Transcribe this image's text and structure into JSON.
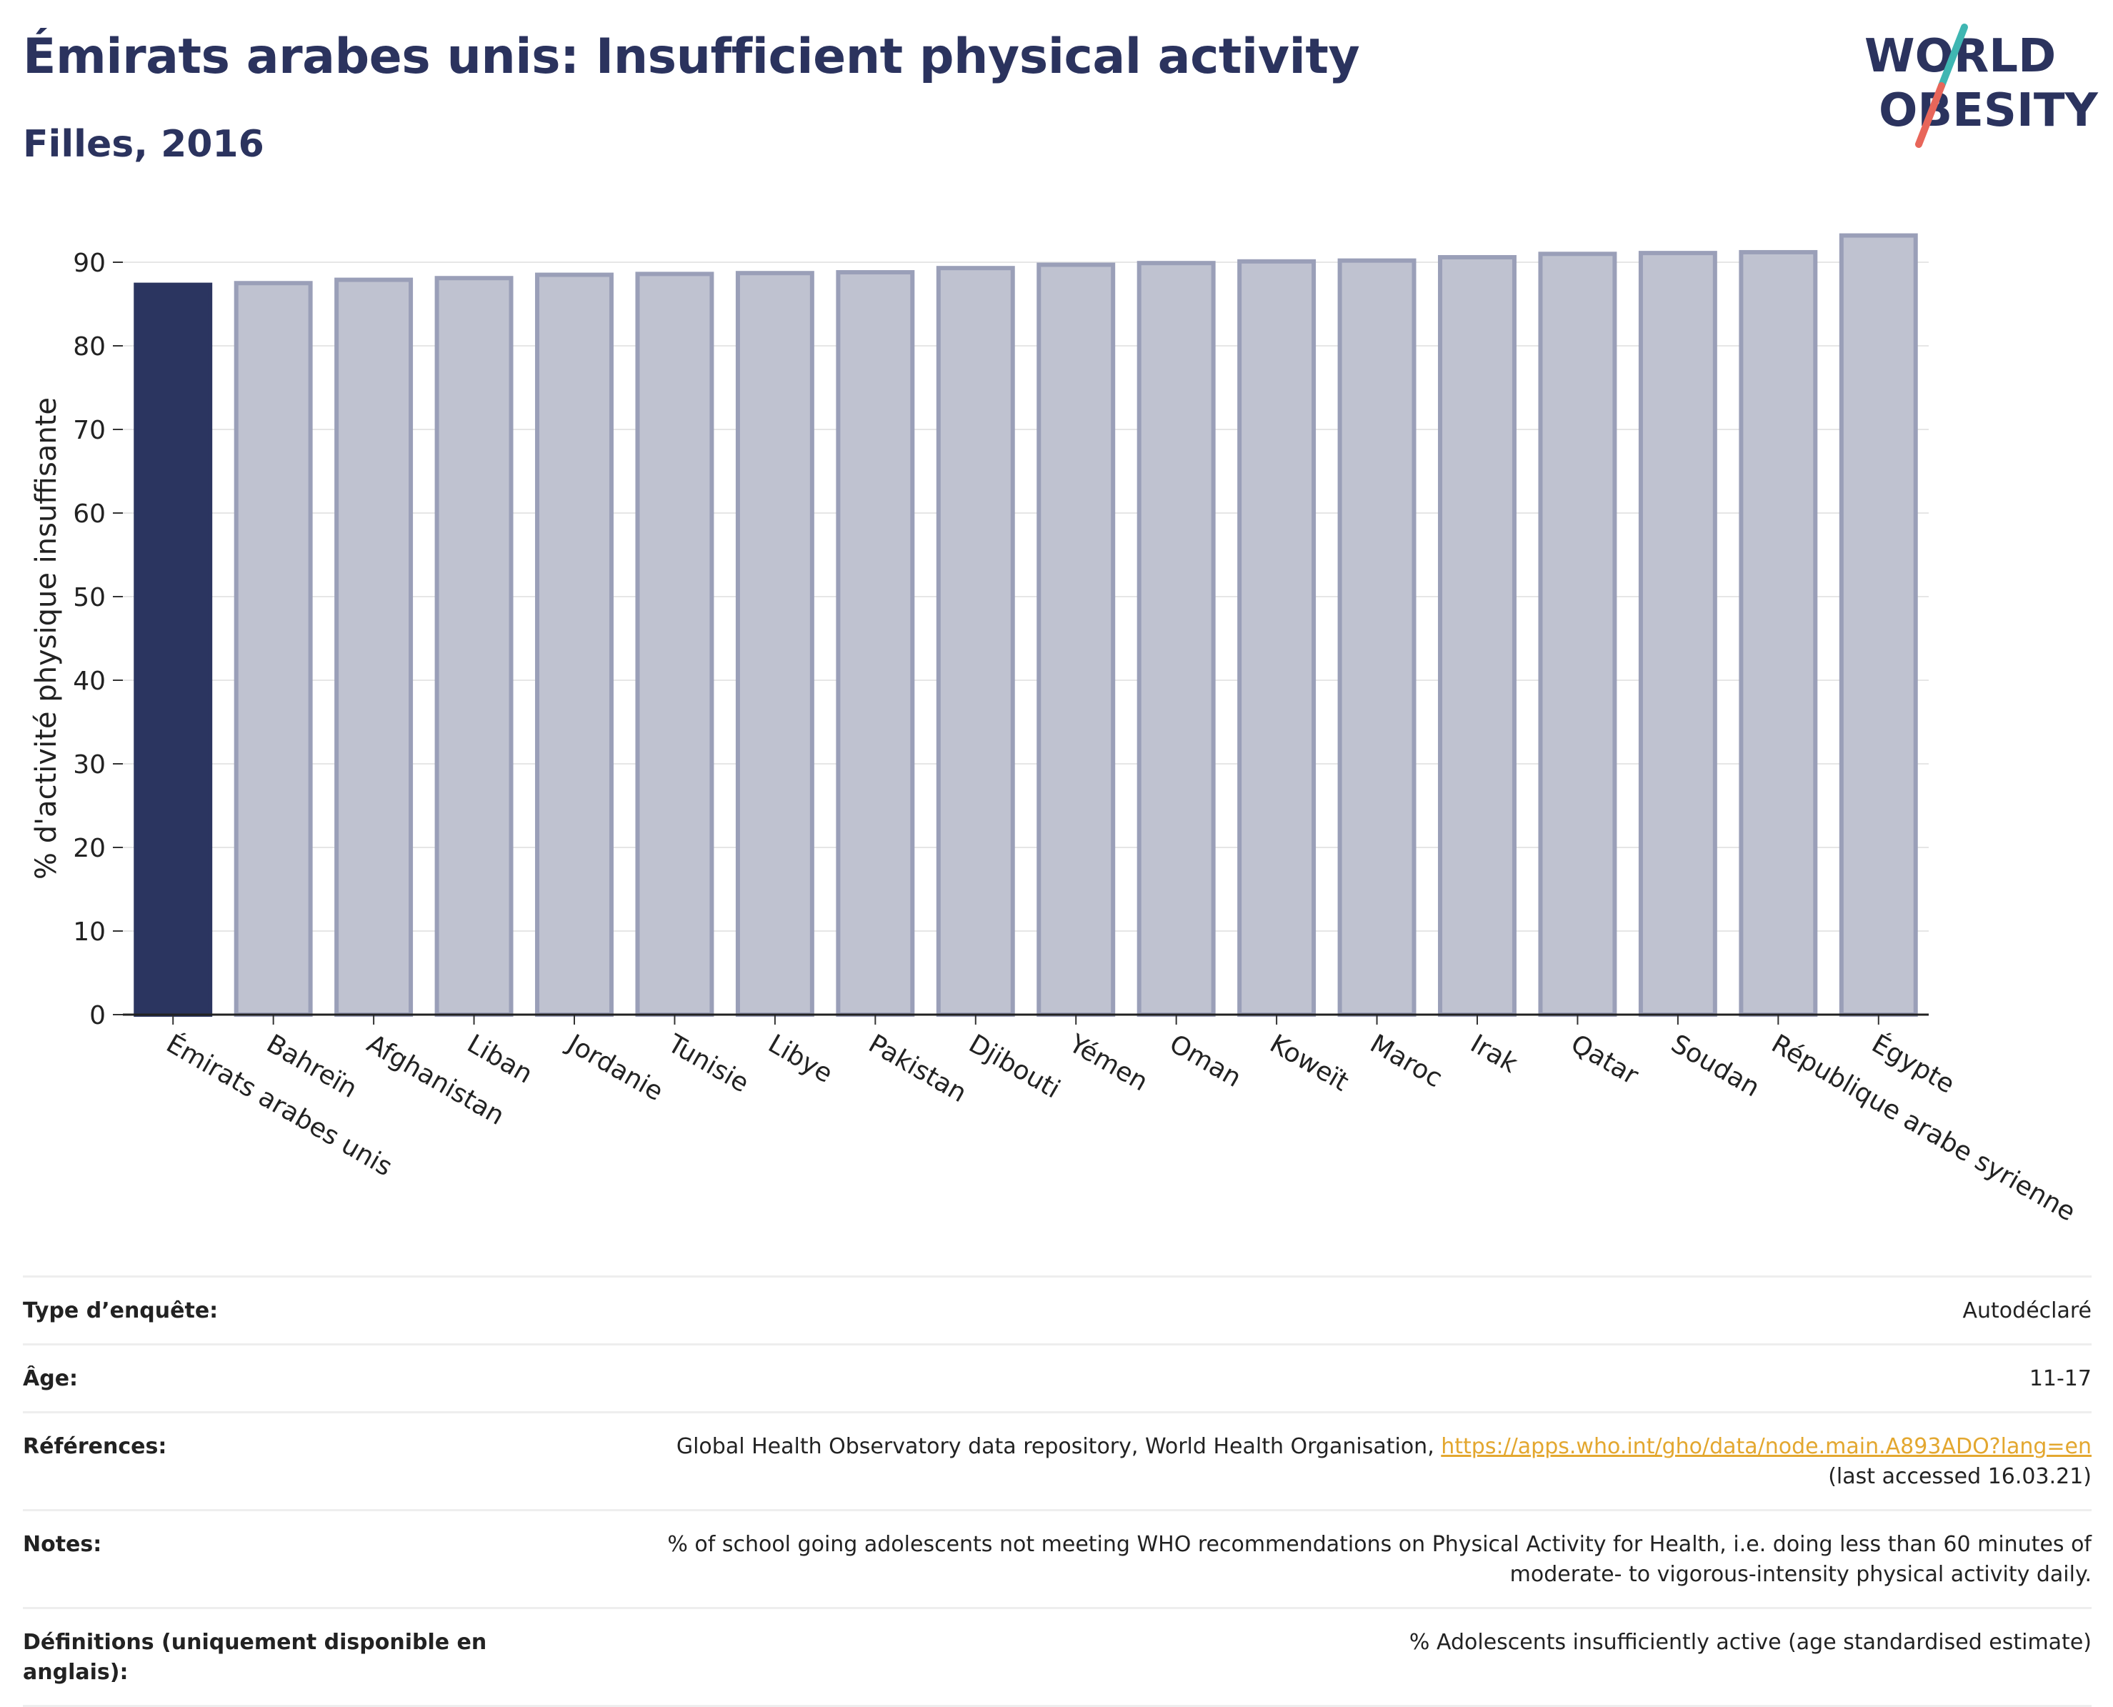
{
  "header": {
    "title": "Émirats arabes unis: Insufficient physical activity",
    "subtitle": "Filles, 2016",
    "logo_line1": "WORLD",
    "logo_line2": "OBESITY"
  },
  "colors": {
    "highlight": "#2b3560",
    "bar_fill": "#bfc2d0",
    "bar_stroke": "#9a9fb8",
    "title": "#2b335e",
    "link": "#e3a72f",
    "logo_teal": "#3fb6b2",
    "logo_coral": "#e8665a"
  },
  "chart_data": {
    "type": "bar",
    "ylabel": "% d'activité physique insuffisante",
    "xlabel": "",
    "ylim": [
      0,
      95
    ],
    "yticks": [
      0,
      10,
      20,
      30,
      40,
      50,
      60,
      70,
      80,
      90
    ],
    "grid": true,
    "highlight_category": "Émirats arabes unis",
    "categories": [
      "Émirats arabes unis",
      "Bahreïn",
      "Afghanistan",
      "Liban",
      "Jordanie",
      "Tunisie",
      "Libye",
      "Pakistan",
      "Djibouti",
      "Yémen",
      "Oman",
      "Koweït",
      "Maroc",
      "Irak",
      "Qatar",
      "Soudan",
      "République arabe syrienne",
      "Égypte"
    ],
    "values": [
      87.3,
      87.5,
      87.9,
      88.1,
      88.5,
      88.6,
      88.7,
      88.8,
      89.3,
      89.7,
      89.9,
      90.1,
      90.2,
      90.6,
      91.0,
      91.1,
      91.2,
      93.2
    ]
  },
  "info": {
    "survey_type_label": "Type d’enquête:",
    "survey_type_value": "Autodéclaré",
    "age_label": "Âge:",
    "age_value": "11-17",
    "references_label": "Références:",
    "references_text": "Global Health Observatory data repository, World Health Organisation, ",
    "references_link": "https://apps.who.int/gho/data/node.main.A893ADO?lang=en",
    "references_accessed": "(last accessed 16.03.21)",
    "notes_label": "Notes:",
    "notes_value": "% of school going adolescents not meeting WHO recommendations on Physical Activity for Health, i.e. doing less than 60 minutes of moderate- to vigorous-intensity physical activity daily.",
    "definitions_label": "Définitions (uniquement disponible en anglais):",
    "definitions_value": "% Adolescents insufficiently active (age standardised estimate)"
  }
}
